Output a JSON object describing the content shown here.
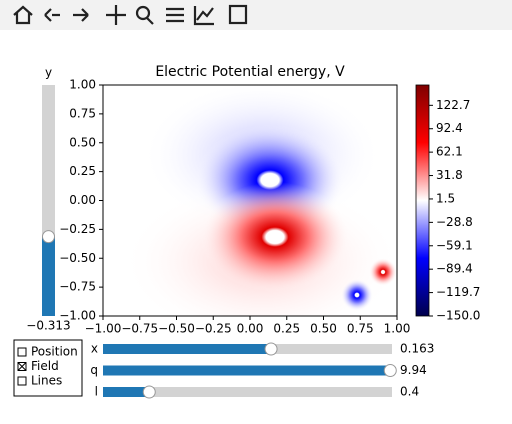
{
  "chart_data": {
    "type": "contour",
    "title": "Electric Potential energy, V",
    "xlim": [
      -1,
      1
    ],
    "ylim": [
      -1,
      1
    ],
    "xticks": [
      {
        "value": -1,
        "label": "−1.00"
      },
      {
        "value": -0.75,
        "label": "−0.75"
      },
      {
        "value": -0.5,
        "label": "−0.50"
      },
      {
        "value": -0.25,
        "label": "−0.25"
      },
      {
        "value": 0,
        "label": "0.00"
      },
      {
        "value": 0.25,
        "label": "0.25"
      },
      {
        "value": 0.5,
        "label": "0.50"
      },
      {
        "value": 0.75,
        "label": "0.75"
      },
      {
        "value": 1,
        "label": "1.00"
      }
    ],
    "yticks": [
      {
        "value": 1,
        "label": "1.00"
      },
      {
        "value": 0.75,
        "label": "0.75"
      },
      {
        "value": 0.5,
        "label": "0.50"
      },
      {
        "value": 0.25,
        "label": "0.25"
      },
      {
        "value": 0,
        "label": "0.00"
      },
      {
        "value": -0.25,
        "label": "−0.25"
      },
      {
        "value": -0.5,
        "label": "−0.50"
      },
      {
        "value": -0.75,
        "label": "−0.75"
      },
      {
        "value": -1,
        "label": "−1.00"
      }
    ],
    "colorbar": {
      "lim": [
        -150,
        149
      ],
      "ticks": [
        122.7,
        92.4,
        62.1,
        31.8,
        1.5,
        {
          "value": -28.8,
          "label": "−28.8"
        },
        {
          "value": -59.1,
          "label": "−59.1"
        },
        {
          "value": -89.4,
          "label": "−89.4"
        },
        {
          "value": -119.7,
          "label": "−119.7"
        },
        {
          "value": -150,
          "label": "−150.0"
        }
      ]
    }
  },
  "sliders": [
    {
      "label": "y",
      "value": -0.313,
      "value_label": "−0.313",
      "range": [
        -1,
        1
      ],
      "orientation": "vertical",
      "color": "#1f77b4"
    },
    {
      "label": "x",
      "value": 0.163,
      "range": [
        -1,
        1
      ],
      "orientation": "horizontal",
      "color": "#1f77b4"
    },
    {
      "label": "q",
      "value": 9.94,
      "range": [
        0,
        10
      ],
      "orientation": "horizontal",
      "color": "#1f77b4"
    },
    {
      "label": "l",
      "value": 0.4,
      "range": [
        0,
        2.5
      ],
      "orientation": "horizontal",
      "color": "#1f77b4"
    }
  ],
  "checkboxes": [
    {
      "label": "Position",
      "checked": false
    },
    {
      "label": "Field",
      "checked": true
    },
    {
      "label": "Lines",
      "checked": false
    }
  ]
}
